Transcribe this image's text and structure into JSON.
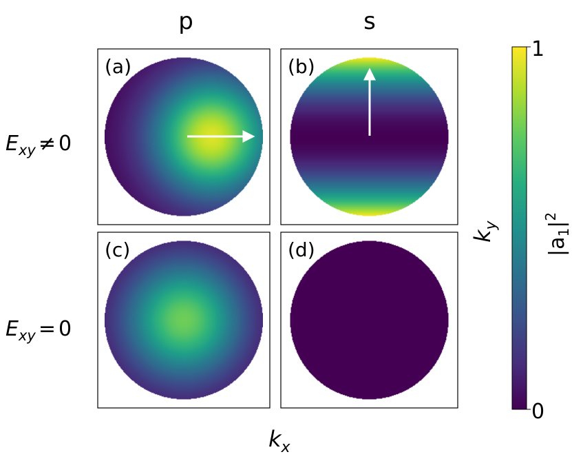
{
  "chart_data": {
    "type": "heatmap",
    "columns": [
      "p",
      "s"
    ],
    "row_labels": [
      {
        "base": "E",
        "sub": "xy",
        "rel": "≠",
        "value": "0"
      },
      {
        "base": "E",
        "sub": "xy",
        "rel": "=",
        "value": "0"
      }
    ],
    "panels": [
      {
        "label": "(a)",
        "pattern": "p",
        "field_in_plane": true,
        "arrow": "+x"
      },
      {
        "label": "(b)",
        "pattern": "s",
        "field_in_plane": true,
        "arrow": "+y"
      },
      {
        "label": "(c)",
        "pattern": "p",
        "field_in_plane": false,
        "arrow": ""
      },
      {
        "label": "(d)",
        "pattern": "s",
        "field_in_plane": false,
        "arrow": ""
      }
    ],
    "xlabel": {
      "base": "k",
      "sub": "x"
    },
    "ylabel": {
      "base": "k",
      "sub": "y"
    },
    "colorbar": {
      "label_base": "|a",
      "label_sub": "1",
      "label_close": "|",
      "label_sup": "2",
      "min": 0,
      "max": 1,
      "tick_min": "0",
      "tick_max": "1",
      "colormap": "viridis"
    }
  }
}
